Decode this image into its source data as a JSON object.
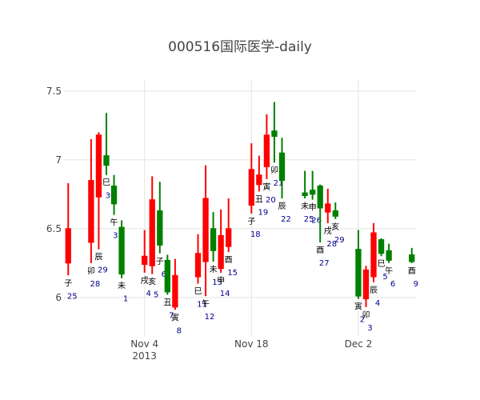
{
  "chart_data": {
    "type": "candlestick",
    "title": "000516国际医学-daily",
    "xlabel": "",
    "ylabel": "",
    "ylim": [
      5.72,
      7.58
    ],
    "grid": true,
    "legend": "none",
    "x_ticks": [
      {
        "label": "Nov 4",
        "sub": "2013",
        "date": "2013-11-04"
      },
      {
        "label": "Nov 18",
        "sub": "",
        "date": "2013-11-18"
      },
      {
        "label": "Dec 2",
        "sub": "",
        "date": "2013-12-02"
      }
    ],
    "y_ticks": [
      "6",
      "6.5",
      "7",
      "7.5"
    ],
    "increasing_color": "#ff0000",
    "decreasing_color": "#008000",
    "annotation_color_branch": "#000000",
    "annotation_color_day": "#00008b",
    "candles": [
      {
        "date": "2013-10-25",
        "open": 6.25,
        "high": 6.83,
        "low": 6.16,
        "close": 6.5,
        "branch": "子",
        "day": "25"
      },
      {
        "date": "2013-10-28",
        "open": 6.4,
        "high": 7.15,
        "low": 6.25,
        "close": 6.85,
        "branch": "卯",
        "day": "28"
      },
      {
        "date": "2013-10-29",
        "open": 6.73,
        "high": 7.2,
        "low": 6.35,
        "close": 7.18,
        "branch": "辰",
        "day": "29"
      },
      {
        "date": "2013-10-30",
        "open": 7.03,
        "high": 7.34,
        "low": 6.89,
        "close": 6.96,
        "branch": "巳",
        "day": "30"
      },
      {
        "date": "2013-10-31",
        "open": 6.81,
        "high": 6.89,
        "low": 6.6,
        "close": 6.68,
        "branch": "午",
        "day": "31"
      },
      {
        "date": "2013-11-01",
        "open": 6.51,
        "high": 6.56,
        "low": 6.14,
        "close": 6.17,
        "branch": "未",
        "day": "1"
      },
      {
        "date": "2013-11-04",
        "open": 6.24,
        "high": 6.49,
        "low": 6.18,
        "close": 6.3,
        "branch": "戌",
        "day": "4"
      },
      {
        "date": "2013-11-05",
        "open": 6.23,
        "high": 6.88,
        "low": 6.17,
        "close": 6.71,
        "branch": "亥",
        "day": "5"
      },
      {
        "date": "2013-11-06",
        "open": 6.63,
        "high": 6.84,
        "low": 6.32,
        "close": 6.38,
        "branch": "子",
        "day": "6"
      },
      {
        "date": "2013-11-07",
        "open": 6.27,
        "high": 6.31,
        "low": 6.02,
        "close": 6.04,
        "branch": "丑",
        "day": "7"
      },
      {
        "date": "2013-11-08",
        "open": 5.93,
        "high": 6.28,
        "low": 5.91,
        "close": 6.16,
        "branch": "寅",
        "day": "8"
      },
      {
        "date": "2013-11-11",
        "open": 6.15,
        "high": 6.46,
        "low": 6.1,
        "close": 6.32,
        "branch": "巳",
        "day": "11"
      },
      {
        "date": "2013-11-12",
        "open": 6.26,
        "high": 6.96,
        "low": 6.01,
        "close": 6.72,
        "branch": "午",
        "day": "12"
      },
      {
        "date": "2013-11-13",
        "open": 6.5,
        "high": 6.62,
        "low": 6.26,
        "close": 6.34,
        "branch": "未",
        "day": "13"
      },
      {
        "date": "2013-11-14",
        "open": 6.21,
        "high": 6.64,
        "low": 6.18,
        "close": 6.45,
        "branch": "申",
        "day": "14"
      },
      {
        "date": "2013-11-15",
        "open": 6.37,
        "high": 6.72,
        "low": 6.33,
        "close": 6.5,
        "branch": "酉",
        "day": "15"
      },
      {
        "date": "2013-11-18",
        "open": 6.67,
        "high": 7.12,
        "low": 6.61,
        "close": 6.93,
        "branch": "子",
        "day": "18"
      },
      {
        "date": "2013-11-19",
        "open": 6.82,
        "high": 7.03,
        "low": 6.77,
        "close": 6.89,
        "branch": "丑",
        "day": "19"
      },
      {
        "date": "2013-11-20",
        "open": 6.95,
        "high": 7.33,
        "low": 6.86,
        "close": 7.18,
        "branch": "寅",
        "day": "20"
      },
      {
        "date": "2013-11-21",
        "open": 7.21,
        "high": 7.42,
        "low": 6.98,
        "close": 7.17,
        "branch": "卯",
        "day": "21"
      },
      {
        "date": "2013-11-22",
        "open": 7.05,
        "high": 7.16,
        "low": 6.72,
        "close": 6.85,
        "branch": "辰",
        "day": "22"
      },
      {
        "date": "2013-11-25",
        "open": 6.76,
        "high": 6.92,
        "low": 6.72,
        "close": 6.74,
        "branch": "未",
        "day": "25"
      },
      {
        "date": "2013-11-26",
        "open": 6.78,
        "high": 6.92,
        "low": 6.71,
        "close": 6.75,
        "branch": "申",
        "day": "26"
      },
      {
        "date": "2013-11-27",
        "open": 6.81,
        "high": 6.82,
        "low": 6.4,
        "close": 6.65,
        "branch": "酉",
        "day": "27"
      },
      {
        "date": "2013-11-28",
        "open": 6.62,
        "high": 6.79,
        "low": 6.54,
        "close": 6.68,
        "branch": "戌",
        "day": "28"
      },
      {
        "date": "2013-11-29",
        "open": 6.63,
        "high": 6.69,
        "low": 6.57,
        "close": 6.59,
        "branch": "亥",
        "day": "29"
      },
      {
        "date": "2013-12-02",
        "open": 6.35,
        "high": 6.49,
        "low": 5.99,
        "close": 6.01,
        "branch": "寅",
        "day": "2"
      },
      {
        "date": "2013-12-03",
        "open": 5.99,
        "high": 6.23,
        "low": 5.93,
        "close": 6.2,
        "branch": "卯",
        "day": "3"
      },
      {
        "date": "2013-12-04",
        "open": 6.15,
        "high": 6.54,
        "low": 6.11,
        "close": 6.47,
        "branch": "辰",
        "day": "4"
      },
      {
        "date": "2013-12-05",
        "open": 6.42,
        "high": 6.43,
        "low": 6.3,
        "close": 6.32,
        "branch": "巳",
        "day": "5"
      },
      {
        "date": "2013-12-06",
        "open": 6.34,
        "high": 6.39,
        "low": 6.25,
        "close": 6.27,
        "branch": "午",
        "day": "6"
      },
      {
        "date": "2013-12-09",
        "open": 6.31,
        "high": 6.36,
        "low": 6.25,
        "close": 6.26,
        "branch": "酉",
        "day": "9"
      }
    ]
  }
}
